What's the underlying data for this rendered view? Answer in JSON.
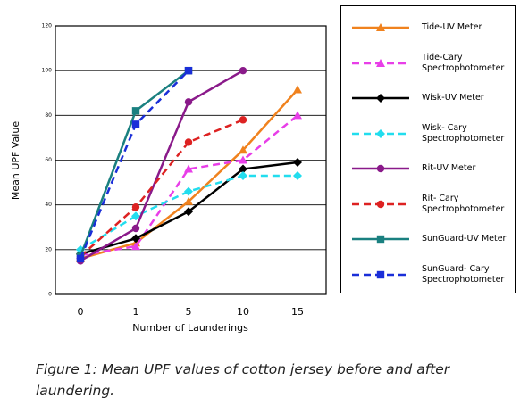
{
  "chart_data": {
    "type": "line",
    "categories": [
      "0",
      "1",
      "5",
      "10",
      "15"
    ],
    "xlabel": "Number of Launderings",
    "ylabel": "Mean UPF Value",
    "ylim": [
      0,
      120
    ],
    "yticks": [
      0,
      20,
      40,
      60,
      80,
      100,
      120
    ],
    "grid": true,
    "series": [
      {
        "name": "Tide-UV Meter",
        "color": "#f0821e",
        "dash": false,
        "marker": "triangle",
        "values": [
          16,
          23,
          41.5,
          64.5,
          91.5
        ]
      },
      {
        "name": "Tide-Cary Spectrophotometer",
        "color": "#e83ee8",
        "dash": true,
        "marker": "triangle",
        "values": [
          17.5,
          21.5,
          56,
          60,
          80
        ]
      },
      {
        "name": "Wisk-UV Meter",
        "color": "#000000",
        "dash": false,
        "marker": "diamond",
        "values": [
          18,
          25,
          37,
          56,
          59
        ]
      },
      {
        "name": "Wisk- Cary Spectrophotometer",
        "color": "#22ddee",
        "dash": true,
        "marker": "diamond",
        "values": [
          20,
          35,
          46,
          53,
          53
        ]
      },
      {
        "name": "Rit-UV Meter",
        "color": "#8a1a8a",
        "dash": false,
        "marker": "circle",
        "values": [
          15,
          29.5,
          86,
          100,
          null
        ]
      },
      {
        "name": "Rit- Cary Spectrophotometer",
        "color": "#dd2222",
        "dash": true,
        "marker": "circle",
        "values": [
          17,
          39,
          68,
          78,
          null
        ]
      },
      {
        "name": "SunGuard-UV Meter",
        "color": "#1a8080",
        "dash": false,
        "marker": "square",
        "values": [
          17,
          82,
          100,
          null,
          null
        ]
      },
      {
        "name": "SunGuard- Cary Spectrophotometer",
        "color": "#1a2ed8",
        "dash": true,
        "marker": "square",
        "values": [
          16,
          76,
          100,
          null,
          null
        ]
      }
    ],
    "caption": "Figure 1: Mean UPF values of cotton jersey before and after laundering."
  }
}
